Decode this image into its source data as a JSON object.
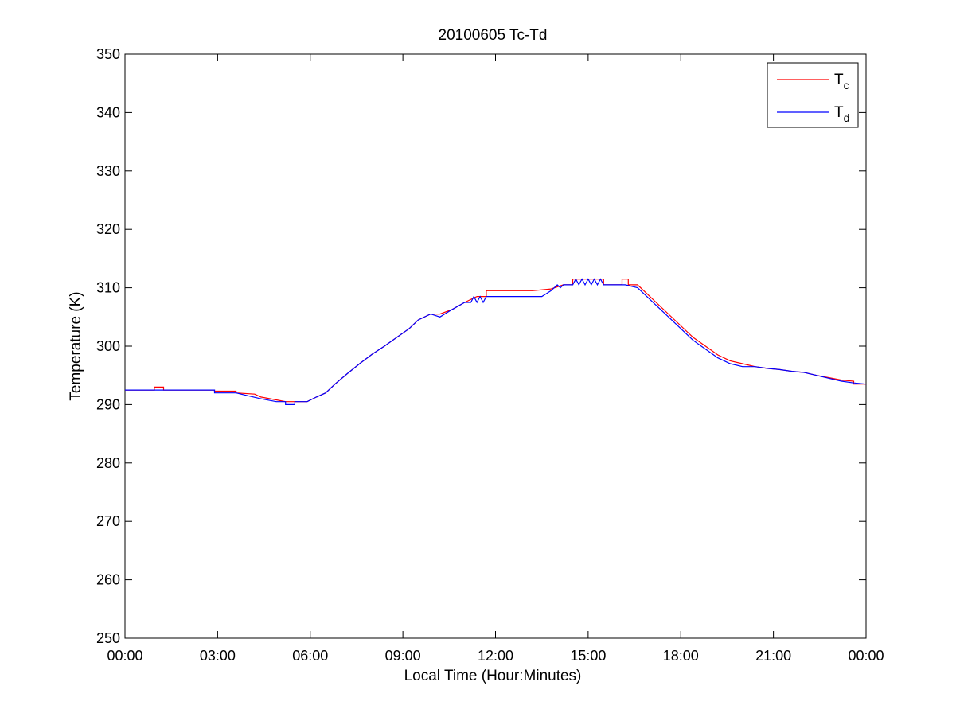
{
  "chart_data": {
    "type": "line",
    "title": "20100605 Tc-Td",
    "xlabel": "Local Time (Hour:Minutes)",
    "ylabel": "Temperature (K)",
    "xlim": [
      0,
      24
    ],
    "ylim": [
      250,
      350
    ],
    "x_ticks": [
      0,
      3,
      6,
      9,
      12,
      15,
      18,
      21,
      24
    ],
    "x_tick_labels": [
      "00:00",
      "03:00",
      "06:00",
      "09:00",
      "12:00",
      "15:00",
      "18:00",
      "21:00",
      "00:00"
    ],
    "y_ticks": [
      250,
      260,
      270,
      280,
      290,
      300,
      310,
      320,
      330,
      340,
      350
    ],
    "y_tick_labels": [
      "250",
      "260",
      "270",
      "280",
      "290",
      "300",
      "310",
      "320",
      "330",
      "340",
      "350"
    ],
    "grid": false,
    "legend_position": "top-right",
    "series": [
      {
        "name": "Tc",
        "legend_main": "T",
        "legend_sub": "c",
        "color": "#ff0000",
        "x": [
          0,
          0.95,
          0.95,
          1.25,
          1.25,
          2.9,
          2.9,
          3.6,
          3.6,
          4.2,
          4.4,
          4.9,
          5.2,
          5.5,
          5.9,
          6.2,
          6.5,
          6.8,
          7.2,
          7.6,
          8.0,
          8.4,
          8.8,
          9.2,
          9.5,
          9.9,
          10.2,
          10.6,
          11.0,
          11.4,
          11.7,
          11.7,
          13.2,
          13.8,
          14.2,
          14.5,
          14.5,
          15.5,
          15.5,
          15.8,
          16.1,
          16.1,
          16.3,
          16.3,
          16.6,
          16.9,
          17.2,
          17.5,
          17.8,
          18.1,
          18.4,
          18.8,
          19.2,
          19.6,
          20.0,
          20.4,
          20.8,
          21.2,
          21.6,
          22.0,
          22.4,
          22.8,
          23.2,
          23.6,
          23.6,
          24.0
        ],
        "y": [
          292.5,
          292.5,
          293.0,
          293.0,
          292.5,
          292.5,
          292.3,
          292.3,
          292.0,
          291.8,
          291.3,
          290.8,
          290.5,
          290.5,
          290.5,
          291.3,
          292.0,
          293.5,
          295.3,
          297.0,
          298.6,
          300.0,
          301.5,
          303.0,
          304.5,
          305.5,
          305.5,
          306.3,
          307.5,
          308.5,
          308.5,
          309.5,
          309.5,
          309.8,
          310.5,
          310.5,
          311.5,
          311.5,
          310.5,
          310.5,
          310.5,
          311.5,
          311.5,
          310.5,
          310.5,
          309.0,
          307.5,
          306.0,
          304.5,
          303.0,
          301.5,
          300.0,
          298.5,
          297.5,
          297.0,
          296.5,
          296.2,
          296.0,
          295.7,
          295.5,
          295.0,
          294.6,
          294.2,
          294.0,
          293.5,
          293.5
        ]
      },
      {
        "name": "Td",
        "legend_main": "T",
        "legend_sub": "d",
        "color": "#0000ff",
        "x": [
          0,
          2.9,
          2.9,
          3.6,
          4.0,
          4.4,
          4.9,
          5.2,
          5.2,
          5.5,
          5.5,
          5.9,
          6.2,
          6.5,
          6.8,
          7.2,
          7.6,
          8.0,
          8.4,
          8.8,
          9.2,
          9.5,
          9.9,
          10.2,
          10.6,
          11.0,
          11.2,
          11.3,
          11.4,
          11.5,
          11.6,
          11.7,
          11.8,
          12.0,
          13.5,
          13.8,
          14.0,
          14.1,
          14.2,
          14.5,
          14.6,
          14.7,
          14.8,
          14.9,
          15.0,
          15.1,
          15.2,
          15.3,
          15.4,
          15.5,
          15.6,
          16.2,
          16.6,
          16.9,
          17.2,
          17.5,
          17.8,
          18.1,
          18.4,
          18.8,
          19.2,
          19.6,
          20.0,
          20.4,
          20.8,
          21.2,
          21.6,
          22.0,
          22.4,
          22.8,
          23.2,
          23.6,
          24.0
        ],
        "y": [
          292.5,
          292.5,
          292.0,
          292.0,
          291.5,
          291.0,
          290.5,
          290.5,
          290.0,
          290.0,
          290.5,
          290.5,
          291.3,
          292.0,
          293.5,
          295.3,
          297.0,
          298.6,
          300.0,
          301.5,
          303.0,
          304.5,
          305.5,
          305.0,
          306.3,
          307.5,
          307.5,
          308.5,
          307.5,
          308.5,
          307.5,
          308.5,
          308.5,
          308.5,
          308.5,
          309.5,
          310.5,
          310.0,
          310.5,
          310.5,
          311.5,
          310.5,
          311.5,
          310.5,
          311.5,
          310.5,
          311.5,
          310.5,
          311.5,
          310.5,
          310.5,
          310.5,
          310.0,
          308.5,
          307.0,
          305.5,
          304.0,
          302.5,
          301.0,
          299.5,
          298.0,
          297.0,
          296.5,
          296.5,
          296.2,
          296.0,
          295.7,
          295.5,
          295.0,
          294.5,
          294.0,
          293.7,
          293.5
        ]
      }
    ]
  }
}
